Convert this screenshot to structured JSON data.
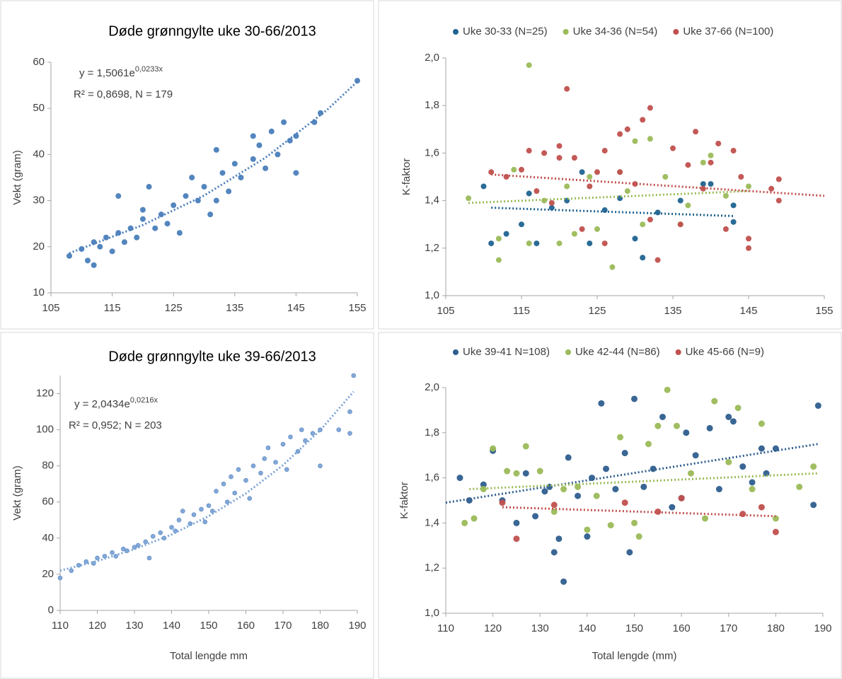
{
  "chart_data": [
    {
      "type": "scatter",
      "title": "Døde grønngylte uke 30-66/2013",
      "ylabel": "Vekt (gram)",
      "equation": {
        "base": "y = 1,5061e",
        "exponent": "0,0233x"
      },
      "r2": "R² = 0,8698, N = 179",
      "xlim": [
        105,
        155
      ],
      "xticks": [
        105,
        115,
        125,
        135,
        145,
        155
      ],
      "ylim": [
        10,
        60
      ],
      "yticks": [
        10,
        20,
        30,
        40,
        50,
        60
      ],
      "series": [
        {
          "color": "#4a7ebb",
          "x": [
            108,
            110,
            111,
            112,
            112,
            113,
            114,
            115,
            116,
            116,
            117,
            118,
            119,
            120,
            120,
            121,
            122,
            123,
            124,
            125,
            126,
            127,
            128,
            129,
            130,
            131,
            132,
            132,
            133,
            134,
            135,
            136,
            138,
            138,
            139,
            140,
            141,
            142,
            143,
            144,
            145,
            145,
            148,
            149,
            155
          ],
          "y": [
            18,
            19.5,
            17,
            21,
            16,
            20,
            22,
            19,
            23,
            31,
            21,
            24,
            22,
            26,
            28,
            33,
            24,
            27,
            25,
            29,
            23,
            31,
            35,
            30,
            33,
            27,
            41,
            30,
            36,
            32,
            38,
            35,
            44,
            39,
            42,
            37,
            45,
            40,
            47,
            43,
            36,
            44,
            47,
            49,
            56
          ],
          "trend": {
            "x": [
              108,
              120,
              130,
              140,
              150,
              155
            ],
            "y": [
              18.6,
              24.7,
              31.1,
              39.3,
              49.6,
              55.8
            ]
          }
        }
      ]
    },
    {
      "type": "scatter",
      "ylabel": "K-faktor",
      "xlim": [
        105,
        155
      ],
      "xticks": [
        105,
        115,
        125,
        135,
        145,
        155
      ],
      "ylim": [
        1,
        2
      ],
      "yticks": [
        {
          "value": 1,
          "label": "1,0"
        },
        {
          "value": 1.2,
          "label": "1,2"
        },
        {
          "value": 1.4,
          "label": "1,4"
        },
        {
          "value": 1.6,
          "label": "1,6"
        },
        {
          "value": 1.8,
          "label": "1,8"
        },
        {
          "value": 2,
          "label": "2,0"
        }
      ],
      "series": [
        {
          "name": "Uke 30-33 (N=25)",
          "color": "#1f6391",
          "x": [
            110,
            111,
            113,
            115,
            116,
            117,
            119,
            121,
            123,
            124,
            126,
            128,
            130,
            131,
            133,
            136,
            139,
            140,
            143,
            143
          ],
          "y": [
            1.46,
            1.22,
            1.26,
            1.3,
            1.43,
            1.22,
            1.37,
            1.4,
            1.52,
            1.22,
            1.36,
            1.41,
            1.24,
            1.16,
            1.35,
            1.4,
            1.47,
            1.47,
            1.38,
            1.31
          ],
          "trend": {
            "x": [
              111,
              143
            ],
            "y": [
              1.37,
              1.335
            ]
          }
        },
        {
          "name": "Uke 34-36 (N=54)",
          "color": "#9bbb59",
          "x": [
            108,
            112,
            112,
            114,
            116,
            116,
            118,
            120,
            121,
            122,
            124,
            125,
            127,
            128,
            129,
            130,
            131,
            132,
            134,
            136,
            137,
            139,
            140,
            142,
            145
          ],
          "y": [
            1.41,
            1.15,
            1.24,
            1.53,
            1.97,
            1.22,
            1.4,
            1.22,
            1.46,
            1.26,
            1.5,
            1.28,
            1.12,
            1.52,
            1.44,
            1.65,
            1.3,
            1.66,
            1.5,
            1.3,
            1.38,
            1.56,
            1.59,
            1.42,
            1.46
          ],
          "trend": {
            "x": [
              108,
              145
            ],
            "y": [
              1.39,
              1.44
            ]
          }
        },
        {
          "name": "Uke 37-66 (N=100)",
          "color": "#c0504d",
          "x": [
            111,
            113,
            115,
            116,
            117,
            118,
            119,
            120,
            120,
            121,
            122,
            123,
            124,
            125,
            126,
            126,
            128,
            128,
            129,
            130,
            131,
            132,
            132,
            133,
            135,
            136,
            137,
            138,
            139,
            140,
            141,
            142,
            143,
            144,
            145,
            145,
            148,
            149,
            149
          ],
          "y": [
            1.52,
            1.5,
            1.53,
            1.61,
            1.44,
            1.6,
            1.39,
            1.63,
            1.58,
            1.87,
            1.58,
            1.28,
            1.46,
            1.52,
            1.61,
            1.22,
            1.68,
            1.52,
            1.7,
            1.47,
            1.74,
            1.79,
            1.32,
            1.15,
            1.62,
            1.3,
            1.55,
            1.69,
            1.45,
            1.56,
            1.64,
            1.28,
            1.61,
            1.5,
            1.24,
            1.2,
            1.45,
            1.49,
            1.4
          ],
          "trend": {
            "x": [
              111,
              155
            ],
            "y": [
              1.51,
              1.42
            ]
          }
        }
      ]
    },
    {
      "type": "scatter",
      "title": "Døde grønngylte uke 39-66/2013",
      "ylabel": "Vekt (gram)",
      "xlabel": "Total lengde mm",
      "equation": {
        "base": "y = 2,0434e",
        "exponent": "0,0216x"
      },
      "r2": "R² = 0,952; N = 203",
      "xlim": [
        110,
        190
      ],
      "xticks": [
        110,
        120,
        130,
        140,
        150,
        160,
        170,
        180,
        190
      ],
      "ylim": [
        0,
        130
      ],
      "yticks": [
        0,
        20,
        40,
        60,
        80,
        100,
        120
      ],
      "series": [
        {
          "color": "#7ba3d6",
          "x": [
            110,
            113,
            115,
            117,
            119,
            120,
            122,
            124,
            125,
            127,
            128,
            130,
            131,
            133,
            134,
            135,
            137,
            138,
            140,
            141,
            142,
            143,
            145,
            146,
            148,
            149,
            150,
            151,
            152,
            154,
            155,
            156,
            157,
            158,
            160,
            161,
            162,
            164,
            165,
            166,
            168,
            170,
            171,
            172,
            174,
            175,
            176,
            178,
            180,
            180,
            185,
            188,
            188,
            189
          ],
          "y": [
            18,
            22,
            25,
            27,
            26,
            29,
            30,
            32,
            30,
            34,
            33,
            35,
            36,
            38,
            29,
            41,
            43,
            40,
            46,
            44,
            50,
            55,
            48,
            53,
            56,
            49,
            58,
            55,
            66,
            70,
            60,
            74,
            65,
            78,
            72,
            62,
            80,
            76,
            84,
            90,
            82,
            92,
            78,
            96,
            88,
            100,
            94,
            98,
            100,
            80,
            100,
            110,
            98,
            130
          ],
          "trend": {
            "x": [
              110,
              120,
              130,
              140,
              150,
              160,
              170,
              180,
              189
            ],
            "y": [
              22.0,
              27.3,
              33.9,
              42.0,
              52.2,
              64.7,
              80.4,
              99.7,
              121.1
            ]
          }
        }
      ]
    },
    {
      "type": "scatter",
      "ylabel": "K-faktor",
      "xlabel": "Total lengde (mm)",
      "xlim": [
        110,
        190
      ],
      "xticks": [
        110,
        120,
        130,
        140,
        150,
        160,
        170,
        180,
        190
      ],
      "ylim": [
        1,
        2
      ],
      "yticks": [
        {
          "value": 1,
          "label": "1,0"
        },
        {
          "value": 1.2,
          "label": "1,2"
        },
        {
          "value": 1.4,
          "label": "1,4"
        },
        {
          "value": 1.6,
          "label": "1,6"
        },
        {
          "value": 1.8,
          "label": "1,8"
        },
        {
          "value": 2,
          "label": "2,0"
        }
      ],
      "series": [
        {
          "name": "Uke 39-41 N=108)",
          "color": "#2e5e8e",
          "x": [
            113,
            115,
            118,
            120,
            122,
            125,
            127,
            129,
            131,
            132,
            133,
            134,
            135,
            136,
            138,
            140,
            141,
            143,
            144,
            146,
            148,
            149,
            150,
            152,
            154,
            156,
            158,
            160,
            161,
            163,
            166,
            168,
            170,
            171,
            173,
            175,
            177,
            178,
            180,
            188,
            189
          ],
          "y": [
            1.6,
            1.5,
            1.57,
            1.72,
            1.5,
            1.4,
            1.62,
            1.43,
            1.54,
            1.56,
            1.27,
            1.33,
            1.14,
            1.69,
            1.52,
            1.34,
            1.6,
            1.93,
            1.64,
            1.55,
            1.71,
            1.27,
            1.95,
            1.56,
            1.64,
            1.87,
            1.47,
            1.51,
            1.8,
            1.7,
            1.82,
            1.55,
            1.87,
            1.85,
            1.65,
            1.58,
            1.73,
            1.62,
            1.73,
            1.48,
            1.92
          ],
          "trend": {
            "x": [
              110,
              189
            ],
            "y": [
              1.49,
              1.75
            ]
          }
        },
        {
          "name": "Uke 42-44 (N=86)",
          "color": "#9bbb59",
          "x": [
            114,
            116,
            118,
            120,
            123,
            125,
            127,
            130,
            133,
            135,
            138,
            140,
            142,
            145,
            147,
            150,
            151,
            153,
            155,
            157,
            159,
            162,
            165,
            167,
            170,
            172,
            175,
            177,
            180,
            185,
            188
          ],
          "y": [
            1.4,
            1.42,
            1.55,
            1.73,
            1.63,
            1.62,
            1.74,
            1.63,
            1.45,
            1.55,
            1.56,
            1.37,
            1.52,
            1.39,
            1.78,
            1.4,
            1.34,
            1.75,
            1.83,
            1.99,
            1.83,
            1.62,
            1.42,
            1.94,
            1.67,
            1.91,
            1.55,
            1.84,
            1.42,
            1.56,
            1.65
          ],
          "trend": {
            "x": [
              115,
              189
            ],
            "y": [
              1.55,
              1.62
            ]
          }
        },
        {
          "name": "Uke 45-66 (N=9)",
          "color": "#c0504d",
          "x": [
            122,
            125,
            133,
            148,
            155,
            160,
            173,
            177,
            180
          ],
          "y": [
            1.49,
            1.33,
            1.48,
            1.49,
            1.45,
            1.51,
            1.44,
            1.47,
            1.36
          ],
          "trend": {
            "x": [
              122,
              180
            ],
            "y": [
              1.47,
              1.43
            ]
          }
        }
      ]
    }
  ]
}
